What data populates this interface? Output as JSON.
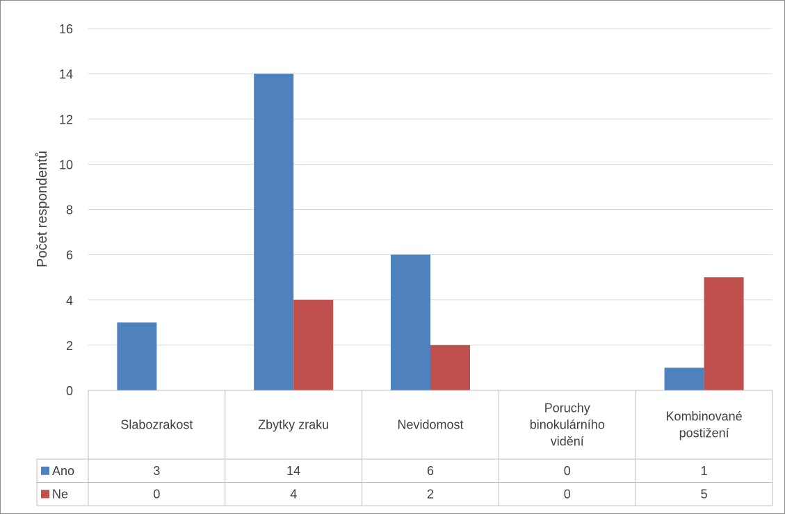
{
  "chart_data": {
    "type": "bar",
    "ylabel": "Počet respondentů",
    "ylim": [
      0,
      16
    ],
    "yticks": [
      0,
      2,
      4,
      6,
      8,
      10,
      12,
      14,
      16
    ],
    "grid": true,
    "legend": "data-table",
    "categories": [
      [
        "Slabozrakost"
      ],
      [
        "Zbytky zraku"
      ],
      [
        "Nevidomost"
      ],
      [
        "Poruchy",
        "binokulárního",
        "vidění"
      ],
      [
        "Kombinované",
        "postižení"
      ]
    ],
    "series": [
      {
        "name": "Ano",
        "color": "#4f81bd",
        "values": [
          3,
          14,
          6,
          0,
          1
        ]
      },
      {
        "name": "Ne",
        "color": "#c0504d",
        "values": [
          0,
          4,
          2,
          0,
          5
        ]
      }
    ]
  }
}
